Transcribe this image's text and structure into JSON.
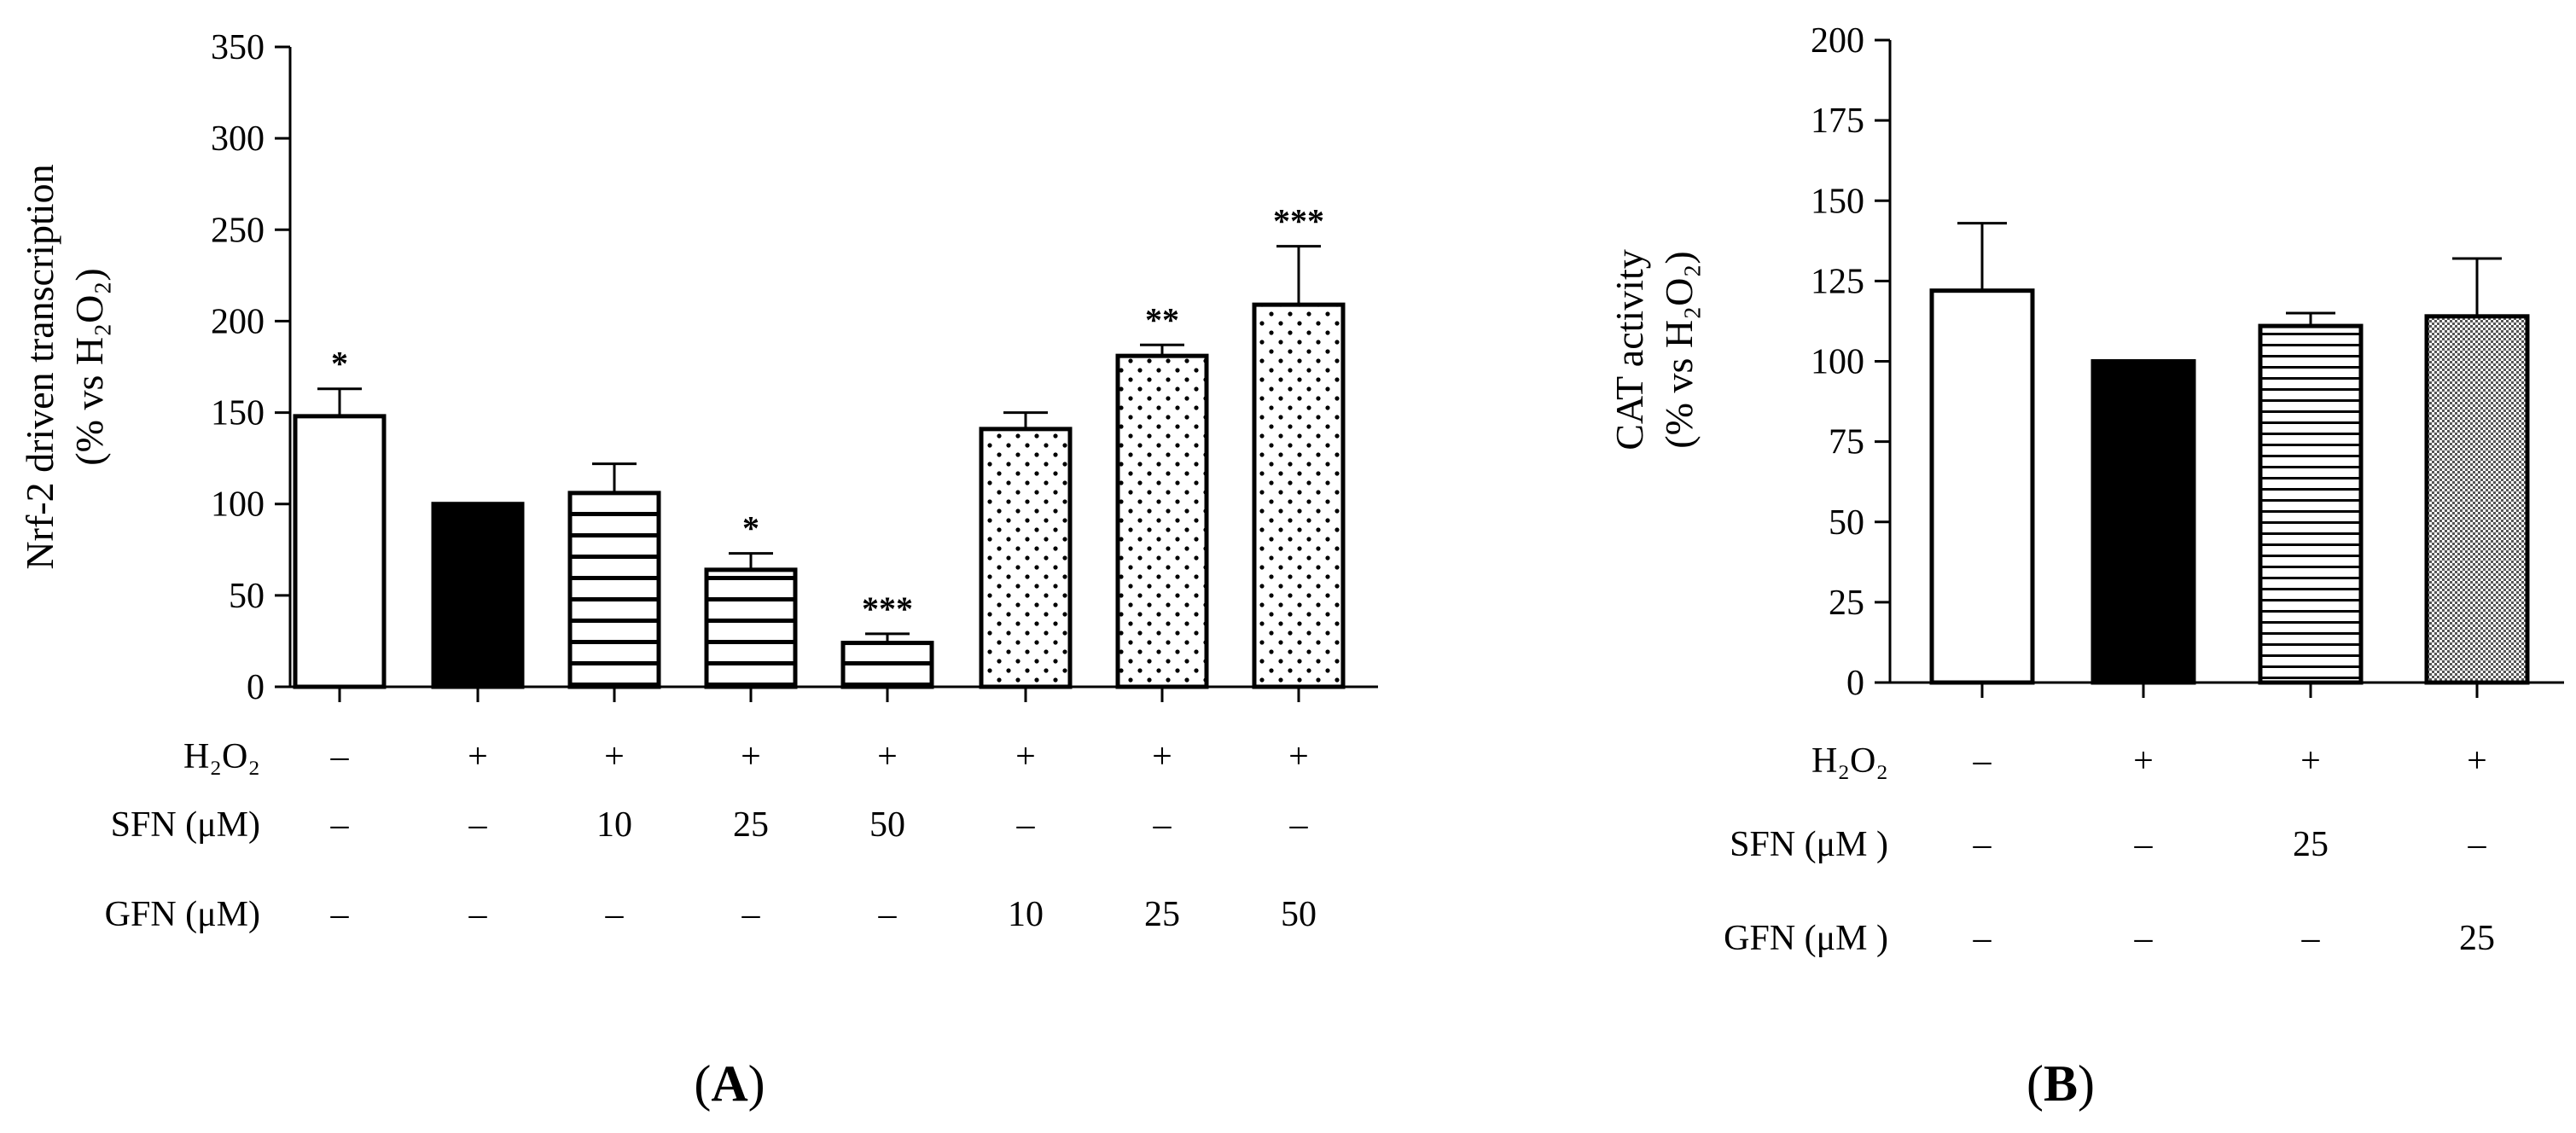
{
  "chart_data": [
    {
      "type": "bar",
      "panel_label": "A",
      "ylabel": "Nrf-2 driven transcription",
      "ylabel_unit": "(% vs H₂O₂)",
      "ylim": [
        0,
        350
      ],
      "yticks": [
        "0",
        "50",
        "100",
        "150",
        "200",
        "250",
        "300",
        "350"
      ],
      "values": [
        148,
        100,
        106,
        64,
        24,
        141,
        181,
        209
      ],
      "errors": [
        15,
        0,
        16,
        9,
        5,
        9,
        6,
        32
      ],
      "significance": [
        "*",
        "",
        "",
        "*",
        "***",
        "",
        "**",
        "***"
      ],
      "fills": [
        "white",
        "black",
        "hlines",
        "hlines",
        "hlines",
        "dots",
        "dots",
        "dots"
      ],
      "rows": [
        {
          "label": "H₂O₂",
          "cells": [
            "–",
            "+",
            "+",
            "+",
            "+",
            "+",
            "+",
            "+"
          ]
        },
        {
          "label": "SFN (μM)",
          "cells": [
            "–",
            "–",
            "10",
            "25",
            "50",
            "–",
            "–",
            "–"
          ]
        },
        {
          "label": "GFN (μM)",
          "cells": [
            "–",
            "–",
            "–",
            "–",
            "–",
            "10",
            "25",
            "50"
          ]
        }
      ]
    },
    {
      "type": "bar",
      "panel_label": "B",
      "ylabel": "CAT activity",
      "ylabel_unit": "(% vs H₂O₂)",
      "ylim": [
        0,
        200
      ],
      "yticks": [
        "0",
        "25",
        "50",
        "75",
        "100",
        "125",
        "150",
        "175",
        "200"
      ],
      "values": [
        122,
        100,
        111,
        114
      ],
      "errors": [
        21,
        0,
        4,
        18
      ],
      "significance": [
        "",
        "",
        "",
        ""
      ],
      "fills": [
        "white",
        "black",
        "hlines",
        "fine-dots"
      ],
      "rows": [
        {
          "label": "H₂O₂",
          "cells": [
            "–",
            "+",
            "+",
            "+"
          ]
        },
        {
          "label": "SFN (μM )",
          "cells": [
            "–",
            "–",
            "25",
            "–"
          ]
        },
        {
          "label": "GFN (μM )",
          "cells": [
            "–",
            "–",
            "–",
            "25"
          ]
        }
      ]
    }
  ]
}
